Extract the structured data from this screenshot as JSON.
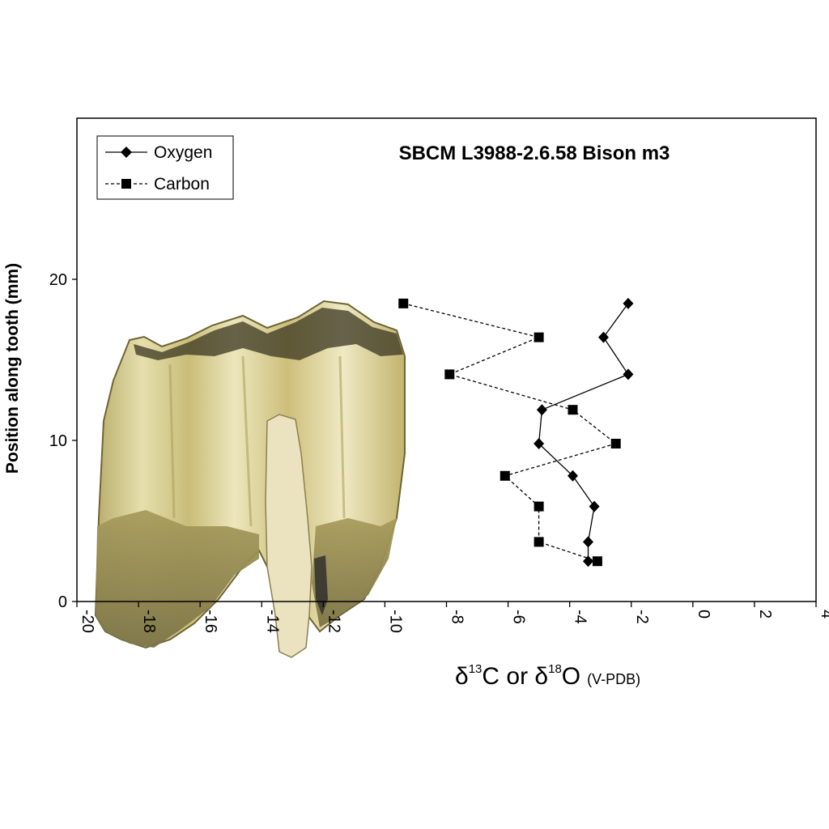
{
  "chart_data": {
    "type": "scatter",
    "title": "SBCM L3988-2.6.58 Bison m3",
    "ylabel": "Position along tooth (mm)",
    "xlabel": {
      "delta1": "δ",
      "sup1": "13",
      "mid": "C or ",
      "delta2": "δ",
      "sup2": "18",
      "end": "O",
      "standard": "(V-PDB)"
    },
    "xlim": [
      -20,
      4
    ],
    "ylim": [
      0,
      30
    ],
    "x_ticks": [
      "-20",
      "-18",
      "-16",
      "-14",
      "-12",
      "-10",
      "-8",
      "-6",
      "-4",
      "-2",
      "0",
      "2",
      "4"
    ],
    "y_ticks": [
      "0",
      "10",
      "20"
    ],
    "grid": false,
    "legend_position": "top-left",
    "series": [
      {
        "name": "Oxygen",
        "marker": "diamond",
        "line": "solid",
        "points": [
          {
            "x": -3.4,
            "y": 2.5
          },
          {
            "x": -3.4,
            "y": 3.7
          },
          {
            "x": -3.2,
            "y": 5.9
          },
          {
            "x": -3.9,
            "y": 7.8
          },
          {
            "x": -5.0,
            "y": 9.8
          },
          {
            "x": -4.9,
            "y": 11.9
          },
          {
            "x": -2.1,
            "y": 14.1
          },
          {
            "x": -2.9,
            "y": 16.4
          },
          {
            "x": -2.1,
            "y": 18.5
          }
        ]
      },
      {
        "name": "Carbon",
        "marker": "square",
        "line": "dashed",
        "points": [
          {
            "x": -3.1,
            "y": 2.5
          },
          {
            "x": -5.0,
            "y": 3.7
          },
          {
            "x": -5.0,
            "y": 5.9
          },
          {
            "x": -6.1,
            "y": 7.8
          },
          {
            "x": -2.5,
            "y": 9.8
          },
          {
            "x": -3.9,
            "y": 11.9
          },
          {
            "x": -7.9,
            "y": 14.1
          },
          {
            "x": -5.0,
            "y": 16.4
          },
          {
            "x": -9.4,
            "y": 18.5
          }
        ]
      }
    ]
  },
  "colors": {
    "ink": "#000000",
    "tooth_enamel": "#d9cf8e",
    "tooth_root": "#8a8250"
  },
  "background_image": "bison-molar-photograph"
}
